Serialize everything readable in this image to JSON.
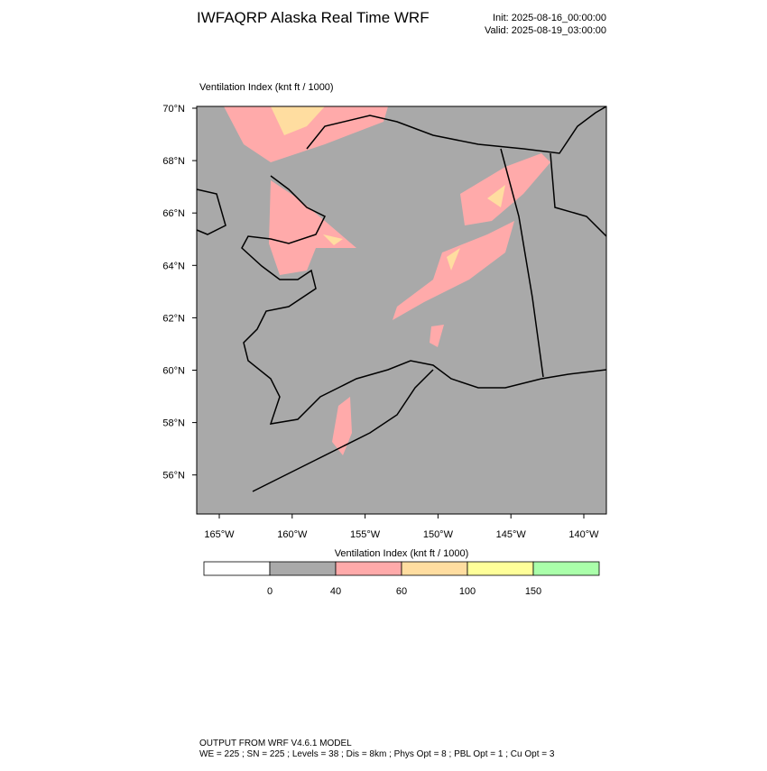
{
  "header": {
    "title": "IWFAQRP Alaska Real Time WRF",
    "init": "Init: 2025-08-16_00:00:00",
    "valid": "Valid: 2025-08-19_03:00:00"
  },
  "map": {
    "field_label": "Ventilation Index   (knt ft / 1000)",
    "lat_labels": [
      "70°N",
      "68°N",
      "66°N",
      "64°N",
      "62°N",
      "60°N",
      "58°N",
      "56°N"
    ],
    "lon_labels": [
      "165°W",
      "160°W",
      "155°W",
      "150°W",
      "145°W",
      "140°W"
    ]
  },
  "colorbar": {
    "title": "Ventilation Index  (knt ft / 1000)",
    "colors": [
      "#ffffff",
      "#a9a9a9",
      "#ffaaaa",
      "#ffdda0",
      "#ffff99",
      "#aaffaa"
    ],
    "labels": [
      0,
      40,
      60,
      100,
      150
    ]
  },
  "footer": {
    "line1": "OUTPUT FROM WRF V4.6.1 MODEL",
    "line2": "WE = 225 ; SN = 225 ; Levels = 38 ; Dis = 8km ; Phys Opt = 8 ; PBL Opt = 1 ; Cu Opt = 3"
  }
}
